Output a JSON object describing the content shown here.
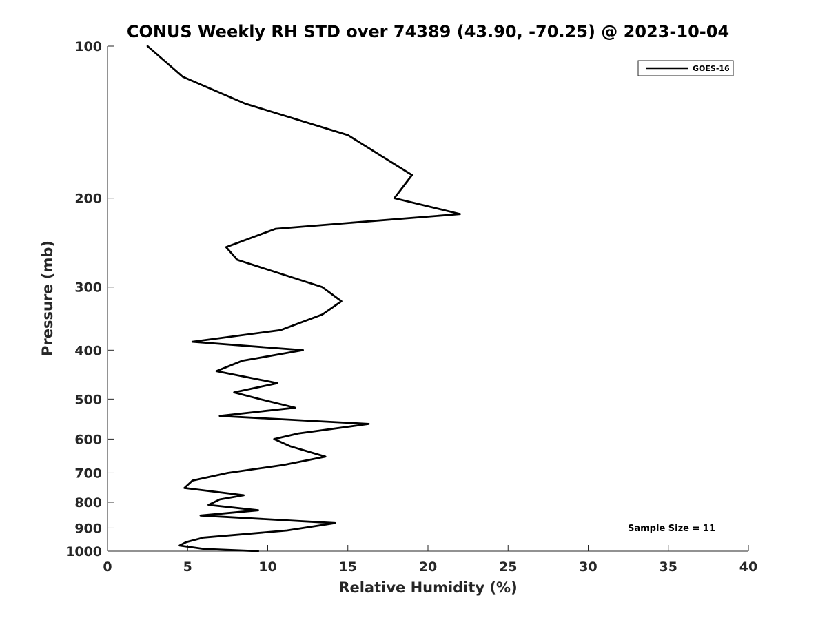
{
  "chart_data": {
    "type": "line",
    "title": "CONUS Weekly RH STD over 74389 (43.90, -70.25) @ 2023-10-04",
    "xlabel": "Relative Humidity (%)",
    "ylabel": "Pressure (mb)",
    "xlim": [
      0,
      40
    ],
    "ylim": [
      100,
      1000
    ],
    "y_scale": "log",
    "y_reversed": true,
    "grid": false,
    "x_ticks": [
      0,
      5,
      10,
      15,
      20,
      25,
      30,
      35,
      40
    ],
    "y_ticks": [
      100,
      200,
      300,
      400,
      500,
      600,
      700,
      800,
      900,
      1000
    ],
    "legend": {
      "position": "top-right",
      "entries": [
        "GOES-16"
      ]
    },
    "annotation": "Sample Size = 11",
    "series": [
      {
        "name": "GOES-16",
        "color": "#000000",
        "x": [
          2.5,
          4.7,
          8.6,
          15.0,
          19.0,
          17.9,
          22.0,
          10.5,
          7.4,
          8.1,
          13.4,
          14.6,
          13.4,
          10.8,
          5.3,
          12.2,
          8.4,
          6.8,
          10.6,
          7.9,
          9.5,
          11.7,
          7.0,
          16.3,
          11.9,
          10.4,
          11.4,
          13.6,
          11.0,
          7.5,
          5.3,
          4.8,
          8.5,
          7.0,
          6.3,
          9.4,
          5.8,
          14.2,
          11.2,
          6.0,
          4.9,
          4.5,
          6.0,
          9.4
        ],
        "y": [
          100,
          115,
          130,
          150,
          180,
          200,
          215,
          230,
          250,
          265,
          300,
          320,
          340,
          365,
          385,
          400,
          420,
          440,
          465,
          485,
          500,
          520,
          540,
          560,
          585,
          600,
          620,
          650,
          675,
          700,
          725,
          750,
          775,
          790,
          810,
          830,
          850,
          880,
          910,
          940,
          960,
          975,
          990,
          1000
        ]
      }
    ]
  }
}
